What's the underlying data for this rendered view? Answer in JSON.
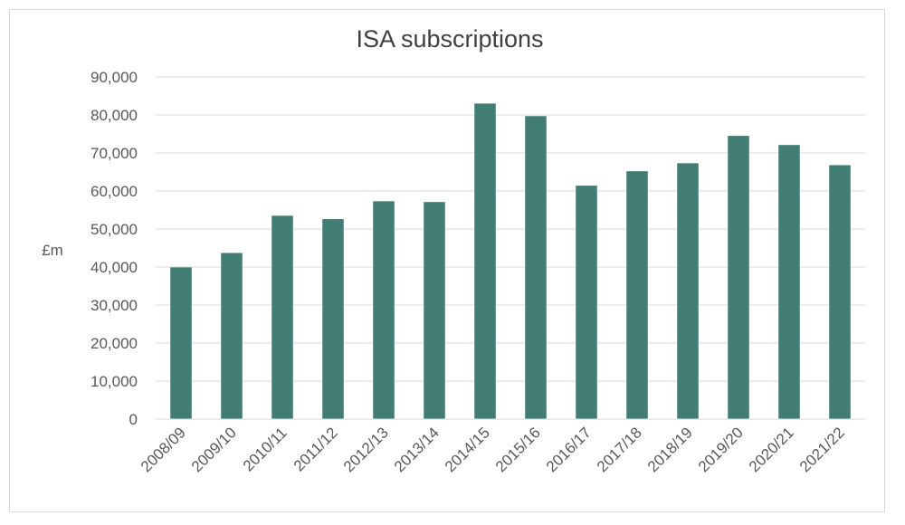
{
  "chart_data": {
    "type": "bar",
    "title": "ISA subscriptions",
    "xlabel": "",
    "ylabel": "£m",
    "ylim": [
      0,
      90000
    ],
    "yticks": [
      0,
      10000,
      20000,
      30000,
      40000,
      50000,
      60000,
      70000,
      80000,
      90000
    ],
    "ytick_labels": [
      "0",
      "10,000",
      "20,000",
      "30,000",
      "40,000",
      "50,000",
      "60,000",
      "70,000",
      "80,000",
      "90,000"
    ],
    "grid": true,
    "legend": "none",
    "bar_color": "#417D72",
    "categories": [
      "2008/09",
      "2009/10",
      "2010/11",
      "2011/12",
      "2012/13",
      "2013/14",
      "2014/15",
      "2015/16",
      "2016/17",
      "2017/18",
      "2018/19",
      "2019/20",
      "2020/21",
      "2021/22"
    ],
    "values": [
      39900,
      43700,
      53500,
      52600,
      57300,
      57100,
      83000,
      79700,
      61400,
      65200,
      67300,
      74500,
      72100,
      66800
    ]
  }
}
